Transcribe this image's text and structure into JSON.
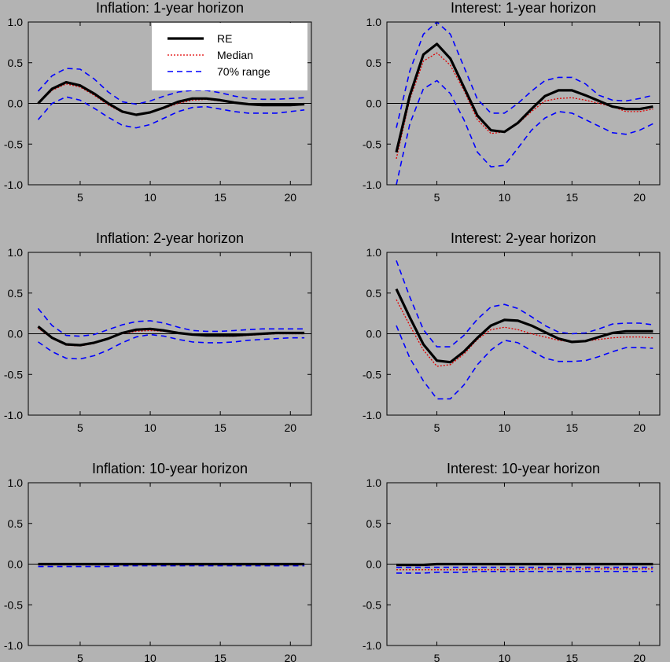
{
  "legend": {
    "entries": [
      {
        "label": "RE",
        "color": "#000000",
        "style": "solid"
      },
      {
        "label": "Median",
        "color": "#e00000",
        "style": "dotted"
      },
      {
        "label": "70% range",
        "color": "#0000ff",
        "style": "dashed"
      }
    ],
    "placement": "top-right of first panel"
  },
  "chart_data": [
    {
      "type": "line",
      "title": "Inflation: 1-year horizon",
      "xlabel": "",
      "ylabel": "",
      "xlim": [
        1.3,
        21.5
      ],
      "ylim": [
        -1.0,
        1.0
      ],
      "xticks": [
        5,
        10,
        15,
        20
      ],
      "yticks": [
        -1.0,
        -0.5,
        0.0,
        0.5,
        1.0
      ],
      "zero_line": true,
      "x": [
        2,
        3,
        4,
        5,
        6,
        7,
        8,
        9,
        10,
        11,
        12,
        13,
        14,
        15,
        16,
        17,
        18,
        19,
        20,
        21
      ],
      "series": [
        {
          "name": "RE",
          "values": [
            0.0,
            0.18,
            0.26,
            0.22,
            0.12,
            0.0,
            -0.1,
            -0.14,
            -0.11,
            -0.05,
            0.02,
            0.06,
            0.06,
            0.04,
            0.01,
            -0.01,
            -0.02,
            -0.02,
            -0.02,
            -0.01
          ]
        },
        {
          "name": "Median",
          "values": [
            0.0,
            0.16,
            0.24,
            0.2,
            0.1,
            -0.02,
            -0.11,
            -0.14,
            -0.11,
            -0.06,
            0.0,
            0.04,
            0.05,
            0.03,
            0.01,
            -0.01,
            -0.02,
            -0.02,
            -0.02,
            -0.01
          ]
        },
        {
          "name": "70% range upper",
          "values": [
            0.15,
            0.34,
            0.43,
            0.42,
            0.3,
            0.14,
            0.02,
            -0.01,
            0.03,
            0.09,
            0.14,
            0.16,
            0.16,
            0.13,
            0.09,
            0.06,
            0.05,
            0.05,
            0.06,
            0.07
          ]
        },
        {
          "name": "70% range lower",
          "values": [
            -0.2,
            0.0,
            0.08,
            0.04,
            -0.06,
            -0.17,
            -0.27,
            -0.3,
            -0.26,
            -0.18,
            -0.1,
            -0.05,
            -0.04,
            -0.07,
            -0.1,
            -0.12,
            -0.12,
            -0.12,
            -0.1,
            -0.08
          ]
        }
      ]
    },
    {
      "type": "line",
      "title": "Interest: 1-year horizon",
      "xlabel": "",
      "ylabel": "",
      "xlim": [
        1.3,
        21.5
      ],
      "ylim": [
        -1.0,
        1.0
      ],
      "xticks": [
        5,
        10,
        15,
        20
      ],
      "yticks": [
        -1.0,
        -0.5,
        0.0,
        0.5,
        1.0
      ],
      "zero_line": true,
      "x": [
        2,
        3,
        4,
        5,
        6,
        7,
        8,
        9,
        10,
        11,
        12,
        13,
        14,
        15,
        16,
        17,
        18,
        19,
        20,
        21
      ],
      "series": [
        {
          "name": "RE",
          "values": [
            -0.6,
            0.1,
            0.6,
            0.73,
            0.55,
            0.2,
            -0.15,
            -0.33,
            -0.35,
            -0.24,
            -0.07,
            0.09,
            0.16,
            0.16,
            0.1,
            0.03,
            -0.04,
            -0.07,
            -0.07,
            -0.04
          ]
        },
        {
          "name": "Median",
          "values": [
            -0.68,
            0.05,
            0.52,
            0.62,
            0.47,
            0.16,
            -0.2,
            -0.37,
            -0.35,
            -0.25,
            -0.1,
            0.03,
            0.06,
            0.07,
            0.04,
            0.0,
            -0.04,
            -0.1,
            -0.1,
            -0.07
          ]
        },
        {
          "name": "70% range upper",
          "values": [
            -0.3,
            0.4,
            0.85,
            1.0,
            0.85,
            0.45,
            0.05,
            -0.12,
            -0.12,
            0.0,
            0.15,
            0.28,
            0.32,
            0.32,
            0.24,
            0.1,
            0.04,
            0.03,
            0.06,
            0.1
          ]
        },
        {
          "name": "70% range lower",
          "values": [
            -1.0,
            -0.25,
            0.18,
            0.28,
            0.12,
            -0.2,
            -0.6,
            -0.78,
            -0.76,
            -0.55,
            -0.33,
            -0.18,
            -0.1,
            -0.12,
            -0.2,
            -0.28,
            -0.36,
            -0.38,
            -0.33,
            -0.25
          ]
        }
      ]
    },
    {
      "type": "line",
      "title": "Inflation: 2-year horizon",
      "xlabel": "",
      "ylabel": "",
      "xlim": [
        1.3,
        21.5
      ],
      "ylim": [
        -1.0,
        1.0
      ],
      "xticks": [
        5,
        10,
        15,
        20
      ],
      "yticks": [
        -1.0,
        -0.5,
        0.0,
        0.5,
        1.0
      ],
      "zero_line": true,
      "x": [
        2,
        3,
        4,
        5,
        6,
        7,
        8,
        9,
        10,
        11,
        12,
        13,
        14,
        15,
        16,
        17,
        18,
        19,
        20,
        21
      ],
      "series": [
        {
          "name": "RE",
          "values": [
            0.09,
            -0.05,
            -0.13,
            -0.14,
            -0.11,
            -0.06,
            0.01,
            0.05,
            0.06,
            0.04,
            0.01,
            -0.01,
            -0.02,
            -0.02,
            -0.02,
            -0.01,
            0.0,
            0.01,
            0.01,
            0.01
          ]
        },
        {
          "name": "Median",
          "values": [
            0.07,
            -0.06,
            -0.14,
            -0.15,
            -0.12,
            -0.06,
            0.0,
            0.03,
            0.04,
            0.03,
            0.01,
            -0.01,
            -0.02,
            -0.03,
            -0.03,
            -0.02,
            -0.01,
            0.0,
            0.0,
            0.0
          ]
        },
        {
          "name": "70% range upper",
          "values": [
            0.31,
            0.1,
            -0.02,
            -0.03,
            -0.01,
            0.05,
            0.11,
            0.15,
            0.16,
            0.13,
            0.08,
            0.04,
            0.03,
            0.03,
            0.04,
            0.05,
            0.06,
            0.06,
            0.06,
            0.06
          ]
        },
        {
          "name": "70% range lower",
          "values": [
            -0.1,
            -0.22,
            -0.3,
            -0.31,
            -0.27,
            -0.2,
            -0.11,
            -0.04,
            -0.01,
            -0.03,
            -0.07,
            -0.1,
            -0.11,
            -0.11,
            -0.1,
            -0.08,
            -0.07,
            -0.06,
            -0.05,
            -0.05
          ]
        }
      ]
    },
    {
      "type": "line",
      "title": "Interest: 2-year horizon",
      "xlabel": "",
      "ylabel": "",
      "xlim": [
        1.3,
        21.5
      ],
      "ylim": [
        -1.0,
        1.0
      ],
      "xticks": [
        5,
        10,
        15,
        20
      ],
      "yticks": [
        -1.0,
        -0.5,
        0.0,
        0.5,
        1.0
      ],
      "zero_line": true,
      "x": [
        2,
        3,
        4,
        5,
        6,
        7,
        8,
        9,
        10,
        11,
        12,
        13,
        14,
        15,
        16,
        17,
        18,
        19,
        20,
        21
      ],
      "series": [
        {
          "name": "RE",
          "values": [
            0.55,
            0.2,
            -0.13,
            -0.33,
            -0.35,
            -0.22,
            -0.05,
            0.1,
            0.17,
            0.16,
            0.1,
            0.02,
            -0.06,
            -0.1,
            -0.09,
            -0.04,
            0.01,
            0.03,
            0.03,
            0.03
          ]
        },
        {
          "name": "Median",
          "values": [
            0.42,
            0.1,
            -0.2,
            -0.4,
            -0.38,
            -0.25,
            -0.07,
            0.05,
            0.08,
            0.05,
            0.0,
            -0.04,
            -0.08,
            -0.1,
            -0.09,
            -0.07,
            -0.05,
            -0.04,
            -0.04,
            -0.05
          ]
        },
        {
          "name": "70% range upper",
          "values": [
            0.9,
            0.45,
            0.05,
            -0.16,
            -0.16,
            -0.02,
            0.18,
            0.33,
            0.36,
            0.31,
            0.21,
            0.1,
            0.02,
            0.0,
            0.01,
            0.06,
            0.12,
            0.13,
            0.13,
            0.11
          ]
        },
        {
          "name": "70% range lower",
          "values": [
            0.1,
            -0.3,
            -0.58,
            -0.8,
            -0.8,
            -0.63,
            -0.38,
            -0.2,
            -0.08,
            -0.11,
            -0.21,
            -0.3,
            -0.34,
            -0.34,
            -0.33,
            -0.28,
            -0.22,
            -0.17,
            -0.17,
            -0.18
          ]
        }
      ]
    },
    {
      "type": "line",
      "title": "Inflation: 10-year horizon",
      "xlabel": "",
      "ylabel": "",
      "xlim": [
        1.3,
        21.5
      ],
      "ylim": [
        -1.0,
        1.0
      ],
      "xticks": [
        5,
        10,
        15,
        20
      ],
      "yticks": [
        -1.0,
        -0.5,
        0.0,
        0.5,
        1.0
      ],
      "zero_line": true,
      "x": [
        2,
        3,
        4,
        5,
        6,
        7,
        8,
        9,
        10,
        11,
        12,
        13,
        14,
        15,
        16,
        17,
        18,
        19,
        20,
        21
      ],
      "series": [
        {
          "name": "RE",
          "values": [
            0.0,
            0.0,
            0.0,
            0.0,
            0.0,
            0.0,
            0.0,
            0.0,
            0.0,
            0.0,
            0.0,
            0.0,
            0.0,
            0.0,
            0.0,
            0.0,
            0.0,
            0.0,
            0.0,
            0.0
          ]
        },
        {
          "name": "Median",
          "values": [
            -0.01,
            -0.01,
            -0.01,
            -0.01,
            -0.01,
            -0.01,
            -0.01,
            -0.01,
            -0.01,
            -0.01,
            -0.01,
            -0.01,
            -0.01,
            -0.01,
            -0.01,
            -0.01,
            -0.01,
            -0.01,
            -0.01,
            -0.01
          ]
        },
        {
          "name": "70% range upper",
          "values": [
            0.0,
            0.0,
            0.0,
            0.0,
            0.0,
            0.0,
            0.0,
            0.0,
            0.0,
            0.0,
            0.0,
            0.0,
            0.0,
            0.0,
            0.0,
            0.0,
            0.0,
            0.0,
            0.0,
            0.0
          ]
        },
        {
          "name": "70% range lower",
          "values": [
            -0.03,
            -0.03,
            -0.03,
            -0.03,
            -0.03,
            -0.03,
            -0.02,
            -0.02,
            -0.02,
            -0.02,
            -0.02,
            -0.02,
            -0.02,
            -0.02,
            -0.02,
            -0.02,
            -0.02,
            -0.02,
            -0.02,
            -0.02
          ]
        }
      ]
    },
    {
      "type": "line",
      "title": "Interest: 10-year horizon",
      "xlabel": "",
      "ylabel": "",
      "xlim": [
        1.3,
        21.5
      ],
      "ylim": [
        -1.0,
        1.0
      ],
      "xticks": [
        5,
        10,
        15,
        20
      ],
      "yticks": [
        -1.0,
        -0.5,
        0.0,
        0.5,
        1.0
      ],
      "zero_line": true,
      "x": [
        2,
        3,
        4,
        5,
        6,
        7,
        8,
        9,
        10,
        11,
        12,
        13,
        14,
        15,
        16,
        17,
        18,
        19,
        20,
        21
      ],
      "series": [
        {
          "name": "RE",
          "values": [
            -0.01,
            -0.01,
            -0.01,
            0.0,
            0.0,
            0.0,
            0.0,
            0.0,
            0.0,
            0.0,
            0.0,
            0.0,
            0.0,
            0.0,
            0.0,
            0.0,
            0.0,
            0.0,
            0.0,
            0.0
          ]
        },
        {
          "name": "Median",
          "values": [
            -0.07,
            -0.07,
            -0.07,
            -0.07,
            -0.07,
            -0.07,
            -0.07,
            -0.07,
            -0.07,
            -0.07,
            -0.06,
            -0.06,
            -0.06,
            -0.06,
            -0.06,
            -0.06,
            -0.06,
            -0.06,
            -0.06,
            -0.06
          ]
        },
        {
          "name": "70% range upper",
          "values": [
            -0.04,
            -0.04,
            -0.04,
            -0.04,
            -0.04,
            -0.04,
            -0.04,
            -0.04,
            -0.04,
            -0.04,
            -0.04,
            -0.04,
            -0.04,
            -0.04,
            -0.04,
            -0.04,
            -0.04,
            -0.04,
            -0.04,
            -0.04
          ]
        },
        {
          "name": "70% range lower",
          "values": [
            -0.11,
            -0.11,
            -0.11,
            -0.1,
            -0.1,
            -0.1,
            -0.09,
            -0.09,
            -0.09,
            -0.09,
            -0.09,
            -0.09,
            -0.09,
            -0.09,
            -0.09,
            -0.09,
            -0.09,
            -0.09,
            -0.09,
            -0.09
          ]
        }
      ]
    }
  ]
}
